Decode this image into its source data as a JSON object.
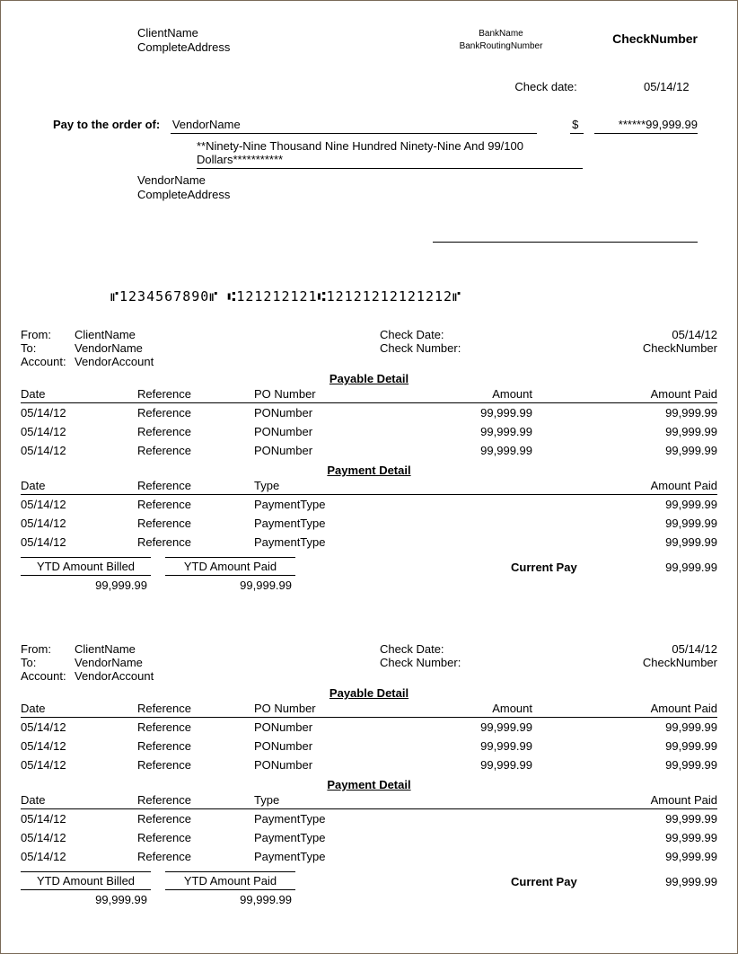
{
  "check": {
    "client_name": "ClientName",
    "client_address": "CompleteAddress",
    "bank_name": "BankName",
    "bank_routing": "BankRoutingNumber",
    "check_number_label": "CheckNumber",
    "check_date_label": "Check date:",
    "check_date": "05/14/12",
    "pay_order_label": "Pay to the order of:",
    "payee": "VendorName",
    "dollar_sign": "$",
    "amount_numeric": "******99,999.99",
    "amount_words": "**Ninety-Nine Thousand Nine Hundred Ninety-Nine And 99/100 Dollars***********",
    "vendor_name": "VendorName",
    "vendor_address": "CompleteAddress",
    "micr": "⑈1234567890⑈  ⑆121212121⑆12121212121212⑈"
  },
  "labels": {
    "from": "From:",
    "to": "To:",
    "account": "Account:",
    "check_date": "Check Date:",
    "check_number": "Check Number:",
    "payable_detail": "Payable Detail",
    "payment_detail": "Payment Detail",
    "date": "Date",
    "reference": "Reference",
    "po_number": "PO Number",
    "amount": "Amount",
    "amount_paid": "Amount Paid",
    "type": "Type",
    "ytd_billed": "YTD Amount Billed",
    "ytd_paid": "YTD Amount Paid",
    "current_pay": "Current Pay"
  },
  "stub1": {
    "from": "ClientName",
    "to": "VendorName",
    "account": "VendorAccount",
    "check_date": "05/14/12",
    "check_number": "CheckNumber",
    "payable": [
      {
        "date": "05/14/12",
        "ref": "Reference",
        "po": "PONumber",
        "amount": "99,999.99",
        "paid": "99,999.99"
      },
      {
        "date": "05/14/12",
        "ref": "Reference",
        "po": "PONumber",
        "amount": "99,999.99",
        "paid": "99,999.99"
      },
      {
        "date": "05/14/12",
        "ref": "Reference",
        "po": "PONumber",
        "amount": "99,999.99",
        "paid": "99,999.99"
      }
    ],
    "payment": [
      {
        "date": "05/14/12",
        "ref": "Reference",
        "type": "PaymentType",
        "paid": "99,999.99"
      },
      {
        "date": "05/14/12",
        "ref": "Reference",
        "type": "PaymentType",
        "paid": "99,999.99"
      },
      {
        "date": "05/14/12",
        "ref": "Reference",
        "type": "PaymentType",
        "paid": "99,999.99"
      }
    ],
    "ytd_billed": "99,999.99",
    "ytd_paid": "99,999.99",
    "current_pay": "99,999.99"
  },
  "stub2": {
    "from": "ClientName",
    "to": "VendorName",
    "account": "VendorAccount",
    "check_date": "05/14/12",
    "check_number": "CheckNumber",
    "payable": [
      {
        "date": "05/14/12",
        "ref": "Reference",
        "po": "PONumber",
        "amount": "99,999.99",
        "paid": "99,999.99"
      },
      {
        "date": "05/14/12",
        "ref": "Reference",
        "po": "PONumber",
        "amount": "99,999.99",
        "paid": "99,999.99"
      },
      {
        "date": "05/14/12",
        "ref": "Reference",
        "po": "PONumber",
        "amount": "99,999.99",
        "paid": "99,999.99"
      }
    ],
    "payment": [
      {
        "date": "05/14/12",
        "ref": "Reference",
        "type": "PaymentType",
        "paid": "99,999.99"
      },
      {
        "date": "05/14/12",
        "ref": "Reference",
        "type": "PaymentType",
        "paid": "99,999.99"
      },
      {
        "date": "05/14/12",
        "ref": "Reference",
        "type": "PaymentType",
        "paid": "99,999.99"
      }
    ],
    "ytd_billed": "99,999.99",
    "ytd_paid": "99,999.99",
    "current_pay": "99,999.99"
  }
}
